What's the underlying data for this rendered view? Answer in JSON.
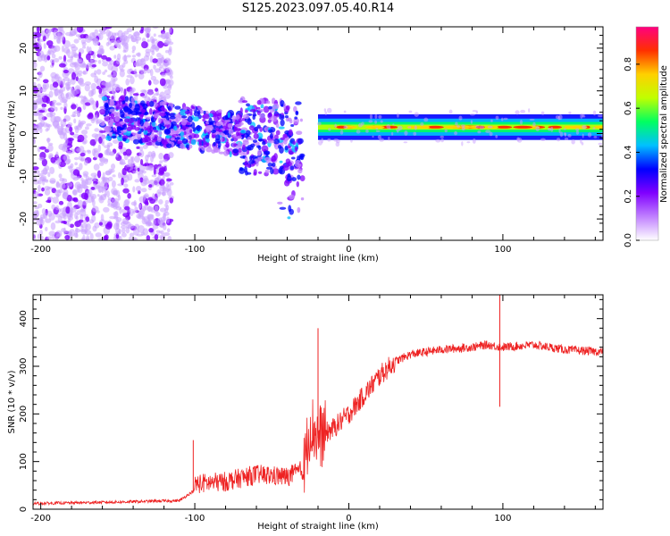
{
  "title": "S125.2023.097.05.40.R14",
  "chart_data": [
    {
      "type": "heatmap",
      "xlabel": "Height of straight line (km)",
      "ylabel": "Frequency (Hz)",
      "xlim": [
        -205,
        165
      ],
      "ylim": [
        -25,
        25
      ],
      "xticks": [
        -200,
        -100,
        0,
        100
      ],
      "yticks": [
        -20,
        -10,
        0,
        10,
        20
      ],
      "colorbar": {
        "label": "Normalized spectral amplitude",
        "range": [
          0,
          0.97
        ],
        "ticks": [
          0.0,
          0.2,
          0.4,
          0.6,
          0.8
        ],
        "colors": [
          "#ffffff",
          "#c080ff",
          "#8000ff",
          "#0000ff",
          "#00c0ff",
          "#00ff60",
          "#c0ff00",
          "#ffd000",
          "#ff3000",
          "#ff0080"
        ]
      },
      "features": [
        {
          "region": "scattered noise",
          "x_range": [
            -205,
            -115
          ],
          "y_range": [
            -25,
            25
          ],
          "amplitude": 0.1
        },
        {
          "region": "descending band",
          "x_range": [
            -160,
            -30
          ],
          "y_range": [
            -15,
            10
          ],
          "amplitude": 0.3
        },
        {
          "region": "steady line",
          "x_range": [
            -20,
            165
          ],
          "y_center": 1.5,
          "amplitude": 0.9
        }
      ]
    },
    {
      "type": "line",
      "xlabel": "Height of straight line (km)",
      "ylabel": "SNR (10 * v/v)",
      "xlim": [
        -205,
        165
      ],
      "ylim": [
        0,
        450
      ],
      "xticks": [
        -200,
        -100,
        0,
        100
      ],
      "yticks": [
        0,
        100,
        200,
        300,
        400
      ],
      "color": "#ee2222",
      "profile": [
        [
          -205,
          12
        ],
        [
          -150,
          15
        ],
        [
          -110,
          18
        ],
        [
          -100,
          40
        ],
        [
          -80,
          45
        ],
        [
          -60,
          60
        ],
        [
          -40,
          55
        ],
        [
          -30,
          70
        ],
        [
          -25,
          180
        ],
        [
          -20,
          150
        ],
        [
          -10,
          170
        ],
        [
          0,
          200
        ],
        [
          10,
          240
        ],
        [
          20,
          280
        ],
        [
          30,
          310
        ],
        [
          40,
          325
        ],
        [
          60,
          335
        ],
        [
          80,
          340
        ],
        [
          90,
          345
        ],
        [
          100,
          340
        ],
        [
          120,
          345
        ],
        [
          140,
          335
        ],
        [
          165,
          330
        ]
      ],
      "spikes": [
        {
          "x": -101,
          "y": 145
        },
        {
          "x": -20,
          "y": 380
        },
        {
          "x": 98,
          "y": 450
        },
        {
          "x": 98,
          "y": 215
        }
      ]
    }
  ]
}
